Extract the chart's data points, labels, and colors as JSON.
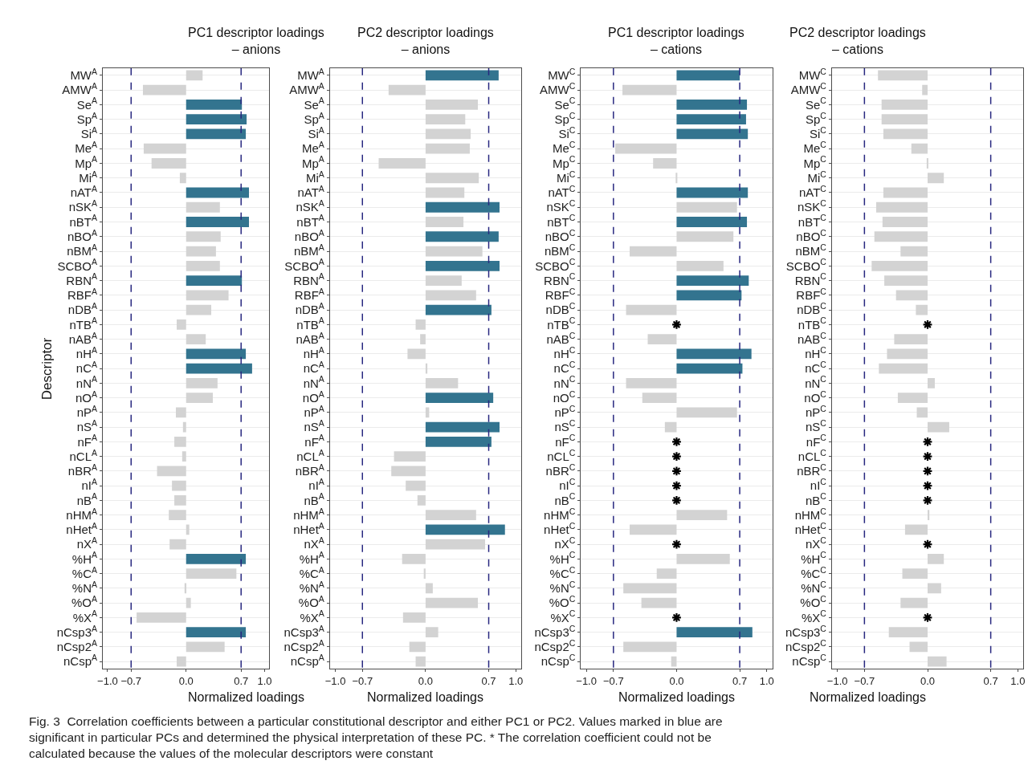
{
  "chart_data": [
    {
      "type": "bar",
      "orientation": "horizontal",
      "title": "PC1 descriptor loadings\n– anions",
      "xlabel": "Normalized loadings",
      "ylabel": "Descriptor",
      "categories": [
        "MW$^{A}$",
        "AMW$^{A}$",
        "Se$^{A}$",
        "Sp$^{A}$",
        "Si$^{A}$",
        "Me$^{A}$",
        "Mp$^{A}$",
        "Mi$^{A}$",
        "nAT$^{A}$",
        "nSK$^{A}$",
        "nBT$^{A}$",
        "nBO$^{A}$",
        "nBM$^{A}$",
        "SCBO$^{A}$",
        "RBN$^{A}$",
        "RBF$^{A}$",
        "nDB$^{A}$",
        "nTB$^{A}$",
        "nAB$^{A}$",
        "nH$^{A}$",
        "nC$^{A}$",
        "nN$^{A}$",
        "nO$^{A}$",
        "nP$^{A}$",
        "nS$^{A}$",
        "nF$^{A}$",
        "nCL$^{A}$",
        "nBR$^{A}$",
        "nI$^{A}$",
        "nB$^{A}$",
        "nHM$^{A}$",
        "nHet$^{A}$",
        "nX$^{A}$",
        "%H$^{A}$",
        "%C$^{A}$",
        "%N$^{A}$",
        "%O$^{A}$",
        "%X$^{A}$",
        "nCsp3$^{A}$",
        "nCsp2$^{A}$",
        "nCsp$^{A}$"
      ],
      "series": [
        {
          "values": [
            0.21,
            -0.55,
            0.71,
            0.77,
            0.76,
            -0.54,
            -0.44,
            -0.08,
            0.8,
            0.43,
            0.8,
            0.44,
            0.38,
            0.43,
            0.71,
            0.54,
            0.32,
            -0.12,
            0.25,
            0.76,
            0.84,
            0.4,
            0.34,
            -0.13,
            -0.04,
            -0.15,
            -0.05,
            -0.37,
            -0.18,
            -0.15,
            -0.22,
            0.04,
            -0.21,
            0.76,
            0.64,
            -0.02,
            0.06,
            -0.63,
            0.76,
            0.49,
            -0.12
          ],
          "colors": [
            "#d3d3d3",
            "#d3d3d3",
            "#33748f",
            "#33748f",
            "#33748f",
            "#d3d3d3",
            "#d3d3d3",
            "#d3d3d3",
            "#33748f",
            "#d3d3d3",
            "#33748f",
            "#d3d3d3",
            "#d3d3d3",
            "#d3d3d3",
            "#33748f",
            "#d3d3d3",
            "#d3d3d3",
            "#d3d3d3",
            "#d3d3d3",
            "#33748f",
            "#33748f",
            "#d3d3d3",
            "#d3d3d3",
            "#d3d3d3",
            "#d3d3d3",
            "#d3d3d3",
            "#d3d3d3",
            "#d3d3d3",
            "#d3d3d3",
            "#d3d3d3",
            "#d3d3d3",
            "#d3d3d3",
            "#d3d3d3",
            "#33748f",
            "#d3d3d3",
            "#d3d3d3",
            "#d3d3d3",
            "#d3d3d3",
            "#33748f",
            "#d3d3d3",
            "#d3d3d3"
          ]
        }
      ],
      "xlim": [
        -1.06,
        1.06
      ],
      "xticks": [
        {
          "value": -1.0,
          "label": "−1.0"
        },
        {
          "value": -0.7,
          "label": "−0.7"
        },
        {
          "value": 0.0,
          "label": "0.0"
        },
        {
          "value": 0.7,
          "label": "0.7"
        },
        {
          "value": 1.0,
          "label": "1.0"
        }
      ],
      "ref_lines": [
        {
          "axis": "x",
          "value": -0.7,
          "color": "#27277f",
          "line_style": "dashed"
        },
        {
          "axis": "x",
          "value": 0.7,
          "color": "#27277f",
          "line_style": "dashed"
        }
      ],
      "grid": "y",
      "annotations": [
        "Fig. 3  Correlation coefficients between a particular constitutional descriptor and either PC1 or PC2. Values marked in blue are significant in particular PCs and determined the physical interpretation of these PC. * The correlation coefficient could not be calculated because the values of the molecular descriptors were constant"
      ]
    },
    {
      "type": "bar",
      "orientation": "horizontal",
      "title": "PC2 descriptor loadings\n– anions",
      "xlabel": "Normalized loadings",
      "categories": [
        "MW$^{A}$",
        "AMW$^{A}$",
        "Se$^{A}$",
        "Sp$^{A}$",
        "Si$^{A}$",
        "Me$^{A}$",
        "Mp$^{A}$",
        "Mi$^{A}$",
        "nAT$^{A}$",
        "nSK$^{A}$",
        "nBT$^{A}$",
        "nBO$^{A}$",
        "nBM$^{A}$",
        "SCBO$^{A}$",
        "RBN$^{A}$",
        "RBF$^{A}$",
        "nDB$^{A}$",
        "nTB$^{A}$",
        "nAB$^{A}$",
        "nH$^{A}$",
        "nC$^{A}$",
        "nN$^{A}$",
        "nO$^{A}$",
        "nP$^{A}$",
        "nS$^{A}$",
        "nF$^{A}$",
        "nCL$^{A}$",
        "nBR$^{A}$",
        "nI$^{A}$",
        "nB$^{A}$",
        "nHM$^{A}$",
        "nHet$^{A}$",
        "nX$^{A}$",
        "%H$^{A}$",
        "%C$^{A}$",
        "%N$^{A}$",
        "%O$^{A}$",
        "%X$^{A}$",
        "nCsp3$^{A}$",
        "nCsp2$^{A}$",
        "nCsp$^{A}$"
      ],
      "series": [
        {
          "values": [
            0.81,
            -0.41,
            0.58,
            0.44,
            0.5,
            0.49,
            -0.52,
            0.59,
            0.43,
            0.82,
            0.42,
            0.81,
            0.63,
            0.82,
            0.4,
            0.56,
            0.73,
            -0.11,
            -0.06,
            -0.2,
            0.02,
            0.36,
            0.75,
            0.04,
            0.82,
            0.73,
            -0.35,
            -0.38,
            -0.22,
            -0.09,
            0.56,
            0.88,
            0.66,
            -0.26,
            -0.02,
            0.08,
            0.58,
            -0.25,
            0.14,
            -0.18,
            -0.11
          ],
          "colors": [
            "#33748f",
            "#d3d3d3",
            "#d3d3d3",
            "#d3d3d3",
            "#d3d3d3",
            "#d3d3d3",
            "#d3d3d3",
            "#d3d3d3",
            "#d3d3d3",
            "#33748f",
            "#d3d3d3",
            "#33748f",
            "#d3d3d3",
            "#33748f",
            "#d3d3d3",
            "#d3d3d3",
            "#33748f",
            "#d3d3d3",
            "#d3d3d3",
            "#d3d3d3",
            "#d3d3d3",
            "#d3d3d3",
            "#33748f",
            "#d3d3d3",
            "#33748f",
            "#33748f",
            "#d3d3d3",
            "#d3d3d3",
            "#d3d3d3",
            "#d3d3d3",
            "#d3d3d3",
            "#33748f",
            "#d3d3d3",
            "#d3d3d3",
            "#d3d3d3",
            "#d3d3d3",
            "#d3d3d3",
            "#d3d3d3",
            "#d3d3d3",
            "#d3d3d3",
            "#d3d3d3"
          ]
        }
      ],
      "xlim": [
        -1.06,
        1.06
      ],
      "xticks": [
        {
          "value": -1.0,
          "label": "−1.0"
        },
        {
          "value": -0.7,
          "label": "−0.7"
        },
        {
          "value": 0.0,
          "label": "0.0"
        },
        {
          "value": 0.7,
          "label": "0.7"
        },
        {
          "value": 1.0,
          "label": "1.0"
        }
      ],
      "ref_lines": [
        {
          "axis": "x",
          "value": -0.7,
          "color": "#27277f",
          "line_style": "dashed"
        },
        {
          "axis": "x",
          "value": 0.7,
          "color": "#27277f",
          "line_style": "dashed"
        }
      ],
      "grid": "y"
    },
    {
      "type": "bar",
      "orientation": "horizontal",
      "title": "PC1 descriptor loadings\n– cations",
      "xlabel": "Normalized loadings",
      "categories": [
        "MW$^{C}$",
        "AMW$^{C}$",
        "Se$^{C}$",
        "Sp$^{C}$",
        "Si$^{C}$",
        "Me$^{C}$",
        "Mp$^{C}$",
        "Mi$^{C}$",
        "nAT$^{C}$",
        "nSK$^{C}$",
        "nBT$^{C}$",
        "nBO$^{C}$",
        "nBM$^{C}$",
        "SCBO$^{C}$",
        "RBN$^{C}$",
        "RBF$^{C}$",
        "nDB$^{C}$",
        "nTB$^{C}$",
        "nAB$^{C}$",
        "nH$^{C}$",
        "nC$^{C}$",
        "nN$^{C}$",
        "nO$^{C}$",
        "nP$^{C}$",
        "nS$^{C}$",
        "nF$^{C}$",
        "nCL$^{C}$",
        "nBR$^{C}$",
        "nI$^{C}$",
        "nB$^{C}$",
        "nHM$^{C}$",
        "nHet$^{C}$",
        "nX$^{C}$",
        "%H$^{C}$",
        "%C$^{C}$",
        "%N$^{C}$",
        "%O$^{C}$",
        "%X$^{C}$",
        "nCsp3$^{C}$",
        "nCsp2$^{C}$",
        "nCsp$^{C}$"
      ],
      "series": [
        {
          "values": [
            0.7,
            -0.6,
            0.78,
            0.77,
            0.79,
            -0.68,
            -0.26,
            -0.01,
            0.79,
            0.67,
            0.78,
            0.63,
            -0.52,
            0.52,
            0.8,
            0.72,
            -0.56,
            null,
            -0.32,
            0.83,
            0.73,
            -0.56,
            -0.38,
            0.67,
            -0.13,
            null,
            null,
            null,
            null,
            null,
            0.56,
            -0.52,
            null,
            0.59,
            -0.22,
            -0.59,
            -0.39,
            null,
            0.84,
            -0.59,
            -0.06
          ],
          "colors": [
            "#33748f",
            "#d3d3d3",
            "#33748f",
            "#33748f",
            "#33748f",
            "#d3d3d3",
            "#d3d3d3",
            "#d3d3d3",
            "#33748f",
            "#d3d3d3",
            "#33748f",
            "#d3d3d3",
            "#d3d3d3",
            "#d3d3d3",
            "#33748f",
            "#33748f",
            "#d3d3d3",
            "#d3d3d3",
            "#d3d3d3",
            "#33748f",
            "#33748f",
            "#d3d3d3",
            "#d3d3d3",
            "#d3d3d3",
            "#d3d3d3",
            "#d3d3d3",
            "#d3d3d3",
            "#d3d3d3",
            "#d3d3d3",
            "#d3d3d3",
            "#d3d3d3",
            "#d3d3d3",
            "#d3d3d3",
            "#d3d3d3",
            "#d3d3d3",
            "#d3d3d3",
            "#d3d3d3",
            "#d3d3d3",
            "#33748f",
            "#d3d3d3",
            "#d3d3d3"
          ]
        },
        {
          "type": "scatter",
          "marker": "cross",
          "color": "#000000",
          "values": [
            null,
            null,
            null,
            null,
            null,
            null,
            null,
            null,
            null,
            null,
            null,
            null,
            null,
            null,
            null,
            null,
            null,
            0,
            null,
            null,
            null,
            null,
            null,
            null,
            null,
            0,
            0,
            0,
            0,
            0,
            null,
            null,
            0,
            null,
            null,
            null,
            null,
            0,
            null,
            null,
            null
          ]
        }
      ],
      "xlim": [
        -1.06,
        1.06
      ],
      "xticks": [
        {
          "value": -1.0,
          "label": "−1.0"
        },
        {
          "value": -0.7,
          "label": "−0.7"
        },
        {
          "value": 0.0,
          "label": "0.0"
        },
        {
          "value": 0.7,
          "label": "0.7"
        },
        {
          "value": 1.0,
          "label": "1.0"
        }
      ],
      "ref_lines": [
        {
          "axis": "x",
          "value": -0.7,
          "color": "#27277f",
          "line_style": "dashed"
        },
        {
          "axis": "x",
          "value": 0.7,
          "color": "#27277f",
          "line_style": "dashed"
        }
      ],
      "grid": "y"
    },
    {
      "type": "bar",
      "orientation": "horizontal",
      "title": "PC2 descriptor loadings\n– cations",
      "xlabel": "Normalized loadings",
      "categories": [
        "MW$^{C}$",
        "AMW$^{C}$",
        "Se$^{C}$",
        "Sp$^{C}$",
        "Si$^{C}$",
        "Me$^{C}$",
        "Mp$^{C}$",
        "Mi$^{C}$",
        "nAT$^{C}$",
        "nSK$^{C}$",
        "nBT$^{C}$",
        "nBO$^{C}$",
        "nBM$^{C}$",
        "SCBO$^{C}$",
        "RBN$^{C}$",
        "RBF$^{C}$",
        "nDB$^{C}$",
        "nTB$^{C}$",
        "nAB$^{C}$",
        "nH$^{C}$",
        "nC$^{C}$",
        "nN$^{C}$",
        "nO$^{C}$",
        "nP$^{C}$",
        "nS$^{C}$",
        "nF$^{C}$",
        "nCL$^{C}$",
        "nBR$^{C}$",
        "nI$^{C}$",
        "nB$^{C}$",
        "nHM$^{C}$",
        "nHet$^{C}$",
        "nX$^{C}$",
        "%H$^{C}$",
        "%C$^{C}$",
        "%N$^{C}$",
        "%O$^{C}$",
        "%X$^{C}$",
        "nCsp3$^{C}$",
        "nCsp2$^{C}$",
        "nCsp$^{C}$"
      ],
      "series": [
        {
          "color": "#d3d3d3",
          "values": [
            -0.55,
            -0.06,
            -0.51,
            -0.51,
            -0.49,
            -0.18,
            -0.01,
            0.18,
            -0.49,
            -0.57,
            -0.5,
            -0.59,
            -0.3,
            -0.62,
            -0.48,
            -0.35,
            -0.13,
            null,
            -0.37,
            -0.45,
            -0.54,
            0.08,
            -0.33,
            -0.12,
            0.24,
            null,
            null,
            null,
            null,
            null,
            0.02,
            -0.25,
            null,
            0.18,
            -0.28,
            0.15,
            -0.3,
            null,
            -0.43,
            -0.2,
            0.21
          ]
        },
        {
          "type": "scatter",
          "marker": "cross",
          "color": "#000000",
          "values": [
            null,
            null,
            null,
            null,
            null,
            null,
            null,
            null,
            null,
            null,
            null,
            null,
            null,
            null,
            null,
            null,
            null,
            0,
            null,
            null,
            null,
            null,
            null,
            null,
            null,
            0,
            0,
            0,
            0,
            0,
            null,
            null,
            0,
            null,
            null,
            null,
            null,
            0,
            null,
            null,
            null
          ]
        }
      ],
      "xlim": [
        -1.06,
        1.06
      ],
      "xticks": [
        {
          "value": -1.0,
          "label": "−1.0"
        },
        {
          "value": -0.7,
          "label": "−0.7"
        },
        {
          "value": 0.0,
          "label": "0.0"
        },
        {
          "value": 0.7,
          "label": "0.7"
        },
        {
          "value": 1.0,
          "label": "1.0"
        }
      ],
      "ref_lines": [
        {
          "axis": "x",
          "value": -0.7,
          "color": "#27277f",
          "line_style": "dashed"
        },
        {
          "axis": "x",
          "value": 0.7,
          "color": "#27277f",
          "line_style": "dashed"
        }
      ],
      "grid": "y"
    }
  ]
}
